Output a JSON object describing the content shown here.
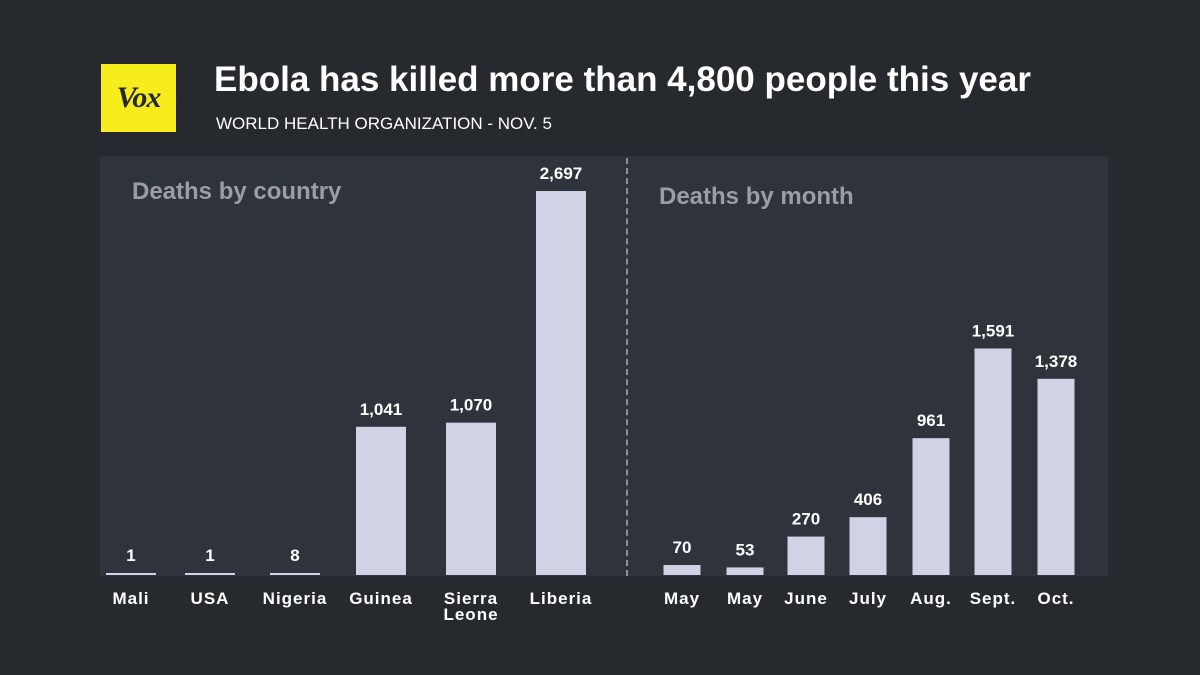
{
  "logo": {
    "text": "Vox",
    "color": "#f7ec1c"
  },
  "title": "Ebola has killed more than 4,800 people this year",
  "source": "WORLD HEALTH ORGANIZATION - NOV. 5",
  "colors": {
    "background": "#26292e",
    "panel": "#2f333b",
    "bar": "#d0d3e6"
  },
  "chart_data": [
    {
      "type": "bar",
      "title": "Deaths by country",
      "categories": [
        "Mali",
        "USA",
        "Nigeria",
        "Guinea",
        "Sierra Leone",
        "Liberia"
      ],
      "category_lines": [
        [
          "Mali"
        ],
        [
          "USA"
        ],
        [
          "Nigeria"
        ],
        [
          "Guinea"
        ],
        [
          "Sierra",
          "Leone"
        ],
        [
          "Liberia"
        ]
      ],
      "values": [
        1,
        1,
        8,
        1041,
        1070,
        2697
      ],
      "value_labels": [
        "1",
        "1",
        "8",
        "1,041",
        "1,070",
        "2,697"
      ],
      "xlabel": "",
      "ylabel": "",
      "ylim": [
        0,
        2697
      ]
    },
    {
      "type": "bar",
      "title": "Deaths by month",
      "categories": [
        "May",
        "May",
        "June",
        "July",
        "Aug.",
        "Sept.",
        "Oct."
      ],
      "category_lines": [
        [
          "May"
        ],
        [
          "May"
        ],
        [
          "June"
        ],
        [
          "July"
        ],
        [
          "Aug."
        ],
        [
          "Sept."
        ],
        [
          "Oct."
        ]
      ],
      "values": [
        70,
        53,
        270,
        406,
        961,
        1591,
        1378
      ],
      "value_labels": [
        "70",
        "53",
        "270",
        "406",
        "961",
        "1,591",
        "1,378"
      ],
      "xlabel": "",
      "ylabel": "",
      "ylim": [
        0,
        2697
      ]
    }
  ]
}
